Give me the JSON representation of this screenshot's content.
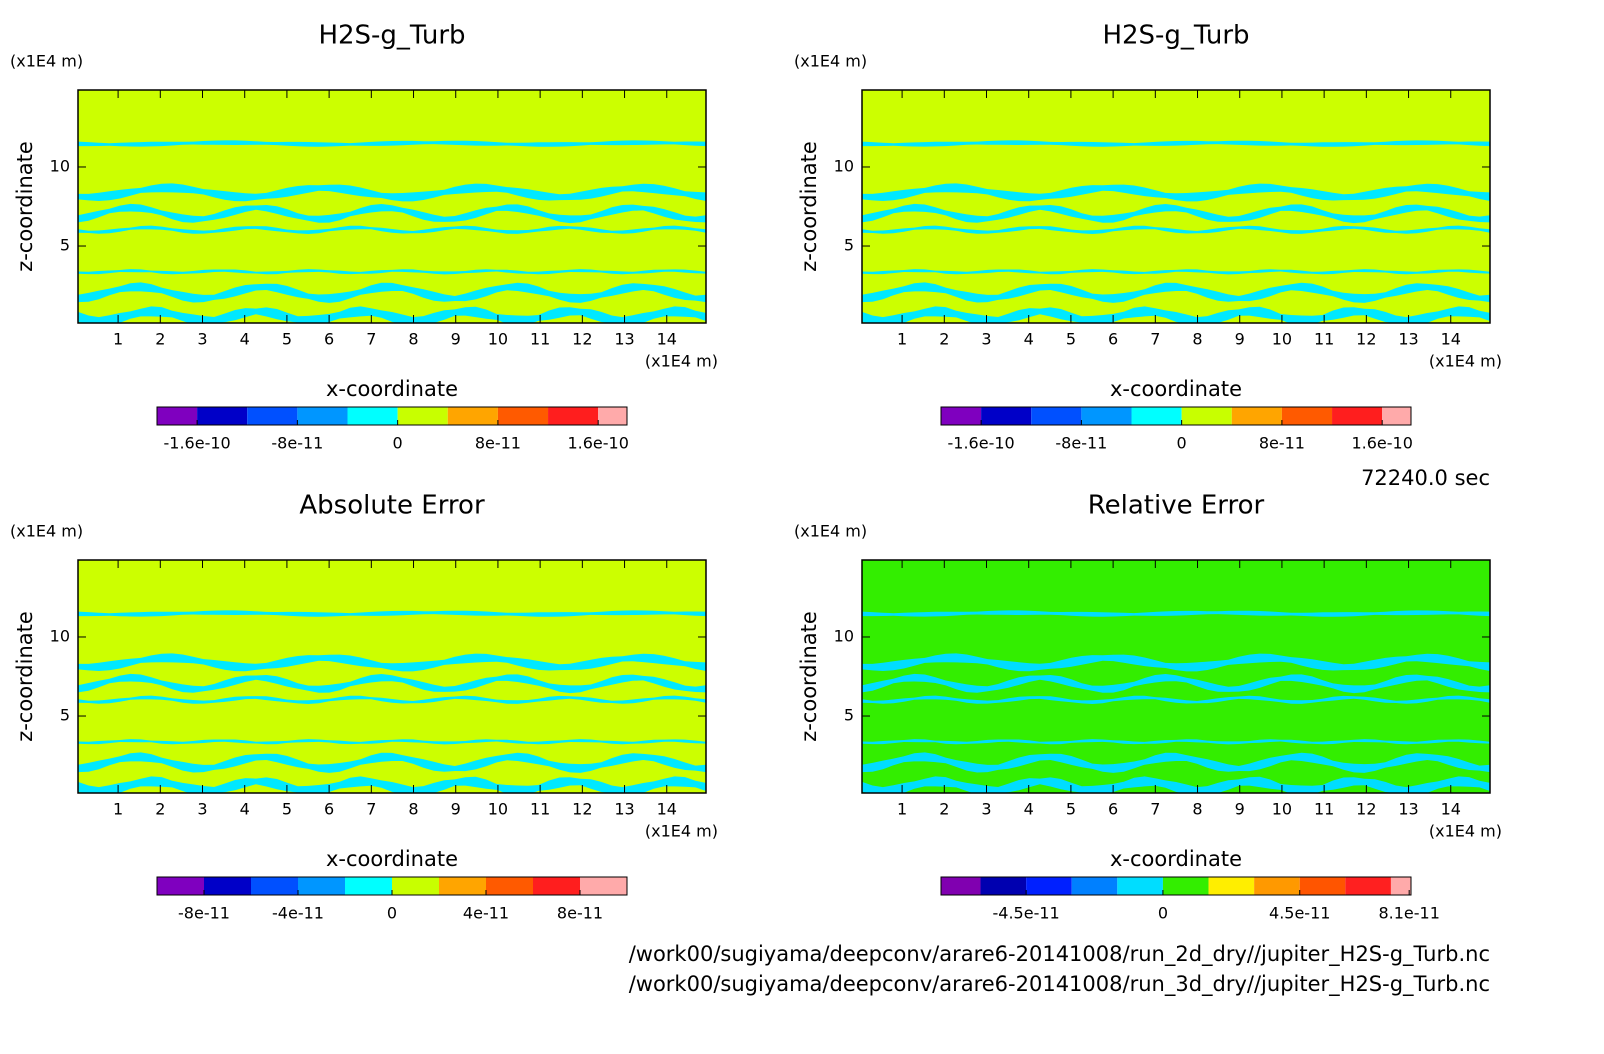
{
  "chart_data": [
    {
      "type": "contour",
      "title": "H2S-g_Turb",
      "xlabel": "x-coordinate",
      "ylabel": "z-coordinate",
      "xunit": "(x1E4 m)",
      "yunit": "(x1E4 m)",
      "xlim": [
        0.05,
        14.93
      ],
      "ylim": [
        0.13,
        14.87
      ],
      "xticks": [
        1,
        2,
        3,
        4,
        5,
        6,
        7,
        8,
        9,
        10,
        11,
        12,
        13,
        14
      ],
      "yticks": [
        5,
        10
      ],
      "field_color": "#ccff00",
      "band_color": "#00e8ff",
      "colorbar": {
        "colors": [
          "#7f00bf",
          "#0000c8",
          "#0050ff",
          "#0096ff",
          "#00ffff",
          "#c8ff00",
          "#ffa500",
          "#ff5a00",
          "#ff1e1e",
          "#ffaaaa"
        ],
        "levels": [
          -1.92e-10,
          -1.6e-10,
          -1.2e-10,
          -8e-11,
          -4e-11,
          0,
          4e-11,
          8e-11,
          1.2e-10,
          1.6e-10,
          1.83e-10
        ],
        "ticks": [
          -1.6e-10,
          -8e-11,
          0,
          8e-11,
          1.6e-10
        ]
      }
    },
    {
      "type": "contour",
      "title": "H2S-g_Turb",
      "xlabel": "x-coordinate",
      "ylabel": "z-coordinate",
      "xunit": "(x1E4 m)",
      "yunit": "(x1E4 m)",
      "xlim": [
        0.05,
        14.93
      ],
      "ylim": [
        0.13,
        14.87
      ],
      "xticks": [
        1,
        2,
        3,
        4,
        5,
        6,
        7,
        8,
        9,
        10,
        11,
        12,
        13,
        14
      ],
      "yticks": [
        5,
        10
      ],
      "field_color": "#ccff00",
      "band_color": "#00e8ff",
      "colorbar": {
        "colors": [
          "#7f00bf",
          "#0000c8",
          "#0050ff",
          "#0096ff",
          "#00ffff",
          "#c8ff00",
          "#ffa500",
          "#ff5a00",
          "#ff1e1e",
          "#ffaaaa"
        ],
        "levels": [
          -1.92e-10,
          -1.6e-10,
          -1.2e-10,
          -8e-11,
          -4e-11,
          0,
          4e-11,
          8e-11,
          1.2e-10,
          1.6e-10,
          1.83e-10
        ],
        "ticks": [
          -1.6e-10,
          -8e-11,
          0,
          8e-11,
          1.6e-10
        ]
      }
    },
    {
      "type": "contour",
      "title": "Absolute Error",
      "xlabel": "x-coordinate",
      "ylabel": "z-coordinate",
      "xunit": "(x1E4 m)",
      "yunit": "(x1E4 m)",
      "xlim": [
        0.05,
        14.93
      ],
      "ylim": [
        0.13,
        14.87
      ],
      "xticks": [
        1,
        2,
        3,
        4,
        5,
        6,
        7,
        8,
        9,
        10,
        11,
        12,
        13,
        14
      ],
      "yticks": [
        5,
        10
      ],
      "field_color": "#ccff00",
      "band_color": "#00e8ff",
      "colorbar": {
        "colors": [
          "#7f00bf",
          "#0000c8",
          "#0050ff",
          "#0096ff",
          "#00ffff",
          "#c8ff00",
          "#ffa500",
          "#ff5a00",
          "#ff1e1e",
          "#ffaaaa"
        ],
        "levels": [
          -1e-10,
          -8e-11,
          -6e-11,
          -4e-11,
          -2e-11,
          0,
          2e-11,
          4e-11,
          6e-11,
          8e-11,
          1e-10
        ],
        "ticks": [
          -8e-11,
          -4e-11,
          0,
          4e-11,
          8e-11
        ]
      }
    },
    {
      "type": "contour",
      "title": "Relative Error",
      "xlabel": "x-coordinate",
      "ylabel": "z-coordinate",
      "xunit": "(x1E4 m)",
      "yunit": "(x1E4 m)",
      "xlim": [
        0.05,
        14.93
      ],
      "ylim": [
        0.13,
        14.87
      ],
      "xticks": [
        1,
        2,
        3,
        4,
        5,
        6,
        7,
        8,
        9,
        10,
        11,
        12,
        13,
        14
      ],
      "yticks": [
        5,
        10
      ],
      "field_color": "#33ee00",
      "band_color": "#00ddff",
      "colorbar": {
        "colors": [
          "#8000b0",
          "#0000b0",
          "#0020ff",
          "#0080ff",
          "#00ddff",
          "#33ee00",
          "#ffee00",
          "#ff9900",
          "#ff5500",
          "#ff2020",
          "#ffaaaa"
        ],
        "levels": [
          -7.3e-11,
          -6e-11,
          -4.5e-11,
          -3e-11,
          -1.5e-11,
          0,
          1.5e-11,
          3e-11,
          4.5e-11,
          6e-11,
          7.5e-11,
          8.16e-11
        ],
        "ticks": [
          -4.5e-11,
          0,
          4.5e-11,
          8.1e-11
        ]
      }
    }
  ],
  "footer": {
    "time": "72240.0 sec",
    "files": [
      "/work00/sugiyama/deepconv/arare6-20141008/run_2d_dry//jupiter_H2S-g_Turb.nc",
      "/work00/sugiyama/deepconv/arare6-20141008/run_3d_dry//jupiter_H2S-g_Turb.nc"
    ]
  }
}
